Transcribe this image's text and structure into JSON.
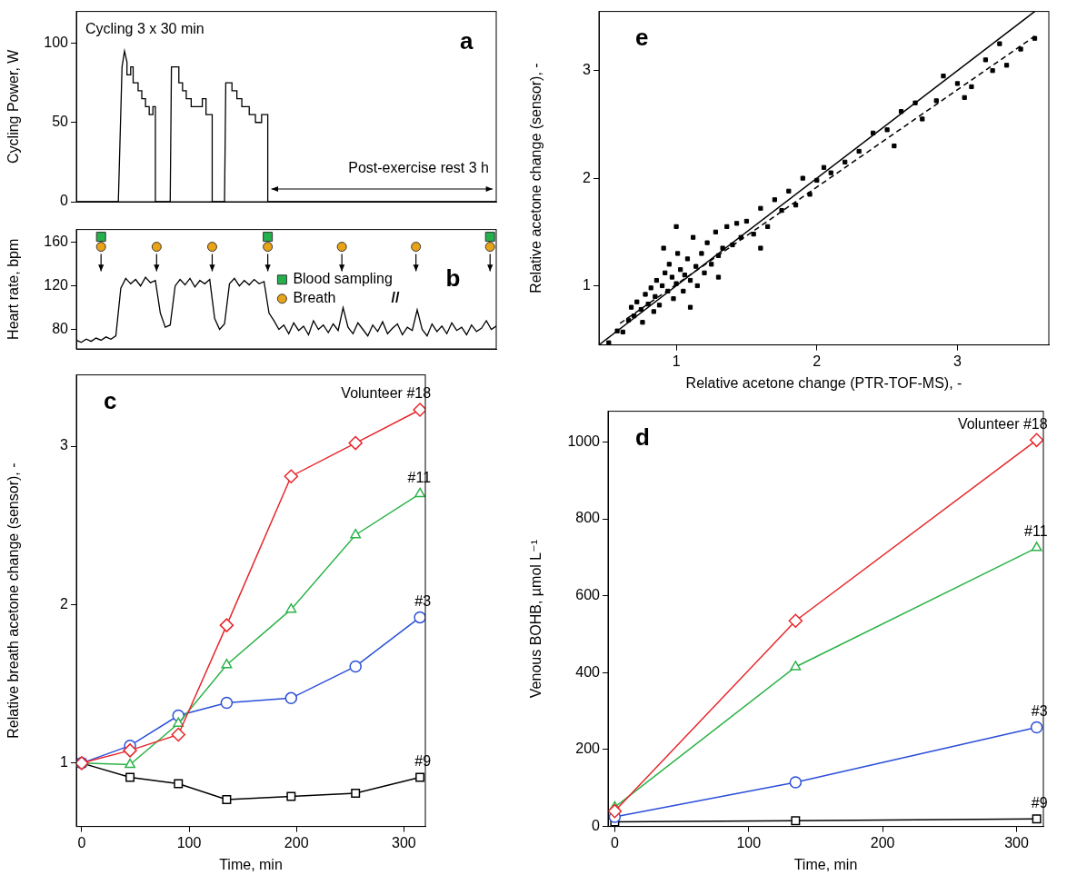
{
  "chart_data": [
    {
      "type": "line",
      "panel": "a",
      "y_label": "Cycling Power, W",
      "annotations": [
        "Cycling 3 x 30 min",
        "Post-exercise rest 3 h"
      ],
      "x": [
        -20,
        14,
        17,
        19,
        21,
        21,
        24,
        24,
        26,
        26,
        30,
        30,
        33,
        33,
        36,
        36,
        39,
        39,
        42,
        42,
        44,
        44,
        56,
        57,
        63,
        63,
        66,
        66,
        69,
        69,
        73,
        73,
        82,
        82,
        85,
        85,
        90,
        90,
        100,
        101,
        106,
        106,
        110,
        110,
        114,
        114,
        120,
        120,
        125,
        125,
        130,
        130,
        135,
        135,
        320
      ],
      "values": [
        0,
        0,
        85,
        95,
        88,
        80,
        80,
        85,
        85,
        75,
        75,
        70,
        70,
        65,
        65,
        60,
        60,
        55,
        55,
        60,
        60,
        0,
        0,
        85,
        85,
        75,
        75,
        70,
        70,
        65,
        65,
        60,
        60,
        65,
        65,
        55,
        55,
        0,
        0,
        75,
        75,
        70,
        70,
        65,
        65,
        60,
        60,
        55,
        55,
        50,
        50,
        55,
        55,
        0,
        0
      ],
      "color": "#000000",
      "xlim": [
        -20,
        320
      ],
      "ylim": [
        0,
        120
      ],
      "yticks": [
        0,
        50,
        100
      ],
      "tick_labels": "y",
      "grid": false
    },
    {
      "type": "line",
      "panel": "b",
      "y_label": "Heart rate, bpm",
      "annotations": [
        "//"
      ],
      "x": [
        -20,
        -16,
        -12,
        -8,
        -4,
        0,
        4,
        8,
        12,
        16,
        20,
        24,
        28,
        32,
        36,
        40,
        44,
        48,
        52,
        56,
        60,
        64,
        68,
        72,
        76,
        80,
        84,
        88,
        92,
        96,
        100,
        104,
        108,
        112,
        116,
        120,
        124,
        128,
        132,
        136,
        140,
        144,
        148,
        152,
        156,
        160,
        164,
        168,
        172,
        176,
        180,
        184,
        188,
        192,
        196,
        200,
        204,
        208,
        212,
        216,
        220,
        224,
        228,
        232,
        236,
        240,
        244,
        248,
        252,
        256,
        260,
        264,
        268,
        272,
        276,
        280,
        284,
        288,
        292,
        296,
        300,
        304,
        308,
        312,
        316,
        320
      ],
      "values": [
        70,
        68,
        71,
        69,
        72,
        70,
        73,
        71,
        74,
        118,
        127,
        122,
        126,
        120,
        128,
        123,
        125,
        95,
        82,
        84,
        120,
        126,
        121,
        127,
        119,
        125,
        122,
        126,
        90,
        80,
        85,
        122,
        127,
        120,
        125,
        121,
        126,
        122,
        124,
        95,
        88,
        80,
        84,
        76,
        86,
        79,
        83,
        75,
        88,
        80,
        84,
        77,
        85,
        79,
        100,
        82,
        76,
        86,
        80,
        74,
        84,
        78,
        87,
        76,
        81,
        85,
        75,
        82,
        79,
        98,
        80,
        74,
        85,
        78,
        83,
        76,
        86,
        79,
        82,
        75,
        84,
        78,
        81,
        88,
        80,
        83
      ],
      "color": "#000000",
      "markers": [
        {
          "name": "Blood sampling",
          "marker": "square",
          "color": "#22b14c",
          "x": [
            0,
            135,
            315
          ]
        },
        {
          "name": "Breath",
          "marker": "circle",
          "color": "#e8a317",
          "x": [
            0,
            45,
            90,
            135,
            195,
            255,
            315
          ]
        }
      ],
      "legend": "center",
      "xlim": [
        -20,
        320
      ],
      "ylim": [
        62,
        172
      ],
      "yticks": [
        80,
        120,
        160
      ],
      "tick_labels": "y",
      "grid": false
    },
    {
      "type": "line",
      "panel": "c",
      "x_label": "Time, min",
      "y_label": "Relative breath acetone change (sensor), -",
      "x": [
        0,
        45,
        90,
        135,
        195,
        255,
        315
      ],
      "series": [
        {
          "name": "Volunteer #18",
          "color": "#e8262b",
          "marker": "diamond",
          "values": [
            1,
            1.08,
            1.18,
            1.87,
            2.81,
            3.02,
            3.23
          ]
        },
        {
          "name": "#11",
          "color": "#2db34a",
          "marker": "triangle",
          "values": [
            1,
            0.99,
            1.25,
            1.62,
            1.97,
            2.44,
            2.7
          ]
        },
        {
          "name": "#3",
          "color": "#2b4fd8",
          "marker": "circle",
          "values": [
            1,
            1.11,
            1.3,
            1.38,
            1.41,
            1.61,
            1.92
          ]
        },
        {
          "name": "#9",
          "color": "#000000",
          "marker": "square",
          "values": [
            1,
            0.91,
            0.87,
            0.77,
            0.79,
            0.81,
            0.91
          ]
        }
      ],
      "xlim": [
        -5,
        320
      ],
      "xticks": [
        0,
        100,
        200,
        300
      ],
      "ylim": [
        0.6,
        3.45
      ],
      "yticks": [
        1,
        2,
        3
      ],
      "grid": false
    },
    {
      "type": "line",
      "panel": "d",
      "x_label": "Time, min",
      "y_label": "Venous BOHB, µmol L⁻¹",
      "x": [
        0,
        135,
        315
      ],
      "series": [
        {
          "name": "Volunteer #18",
          "color": "#e8262b",
          "marker": "diamond",
          "values": [
            40,
            535,
            1005
          ]
        },
        {
          "name": "#11",
          "color": "#2db34a",
          "marker": "triangle",
          "values": [
            50,
            415,
            725
          ]
        },
        {
          "name": "#3",
          "color": "#2b4fd8",
          "marker": "circle",
          "values": [
            25,
            115,
            258
          ]
        },
        {
          "name": "#9",
          "color": "#000000",
          "marker": "square",
          "values": [
            12,
            15,
            20
          ]
        }
      ],
      "xlim": [
        -5,
        320
      ],
      "xticks": [
        0,
        100,
        200,
        300
      ],
      "ylim": [
        0,
        1080
      ],
      "yticks": [
        0,
        200,
        400,
        600,
        800,
        1000
      ],
      "grid": false
    },
    {
      "type": "scatter",
      "panel": "e",
      "x_label": "Relative acetone change (PTR-TOF-MS), -",
      "y_label": "Relative acetone change (sensor), -",
      "x": [
        0.52,
        0.58,
        0.62,
        0.66,
        0.68,
        0.7,
        0.72,
        0.75,
        0.76,
        0.78,
        0.8,
        0.82,
        0.84,
        0.85,
        0.86,
        0.88,
        0.9,
        0.91,
        0.92,
        0.94,
        0.95,
        0.97,
        0.98,
        1.0,
        1.0,
        1.01,
        1.03,
        1.05,
        1.06,
        1.08,
        1.1,
        1.1,
        1.12,
        1.14,
        1.15,
        1.18,
        1.2,
        1.22,
        1.25,
        1.28,
        1.3,
        1.3,
        1.33,
        1.36,
        1.4,
        1.43,
        1.46,
        1.5,
        1.55,
        1.6,
        1.6,
        1.65,
        1.7,
        1.75,
        1.8,
        1.85,
        1.9,
        1.95,
        2.0,
        2.05,
        2.1,
        2.2,
        2.3,
        2.4,
        2.5,
        2.55,
        2.6,
        2.7,
        2.75,
        2.85,
        2.9,
        3.0,
        3.05,
        3.1,
        3.2,
        3.25,
        3.3,
        3.35,
        3.45,
        3.55
      ],
      "values": [
        0.47,
        0.58,
        0.57,
        0.68,
        0.8,
        0.72,
        0.85,
        0.78,
        0.66,
        0.92,
        0.83,
        0.98,
        0.76,
        0.9,
        1.05,
        0.82,
        1.0,
        1.35,
        1.12,
        0.95,
        1.2,
        1.08,
        0.88,
        1.02,
        1.55,
        1.3,
        1.15,
        0.95,
        1.1,
        1.25,
        1.05,
        0.8,
        1.45,
        1.18,
        1.0,
        1.3,
        1.12,
        1.4,
        1.2,
        1.5,
        1.28,
        1.08,
        1.35,
        1.55,
        1.38,
        1.58,
        1.45,
        1.6,
        1.48,
        1.72,
        1.35,
        1.55,
        1.8,
        1.7,
        1.88,
        1.75,
        2.0,
        1.85,
        1.98,
        2.1,
        2.05,
        2.15,
        2.25,
        2.42,
        2.45,
        2.3,
        2.62,
        2.7,
        2.55,
        2.72,
        2.95,
        2.88,
        2.75,
        2.85,
        3.1,
        3.0,
        3.25,
        3.05,
        3.2,
        3.3
      ],
      "color": "#000000",
      "marker": "square",
      "lines": [
        {
          "x": [
            0.45,
            3.55
          ],
          "values": [
            0.45,
            3.55
          ],
          "color": "#000000",
          "line_style": "solid"
        },
        {
          "x": [
            0.6,
            3.55
          ],
          "values": [
            0.65,
            3.32
          ],
          "color": "#000000",
          "line_style": "dashed"
        }
      ],
      "xlim": [
        0.45,
        3.65
      ],
      "xticks": [
        1,
        2,
        3
      ],
      "ylim": [
        0.45,
        3.55
      ],
      "yticks": [
        1,
        2,
        3
      ],
      "grid": false
    }
  ]
}
